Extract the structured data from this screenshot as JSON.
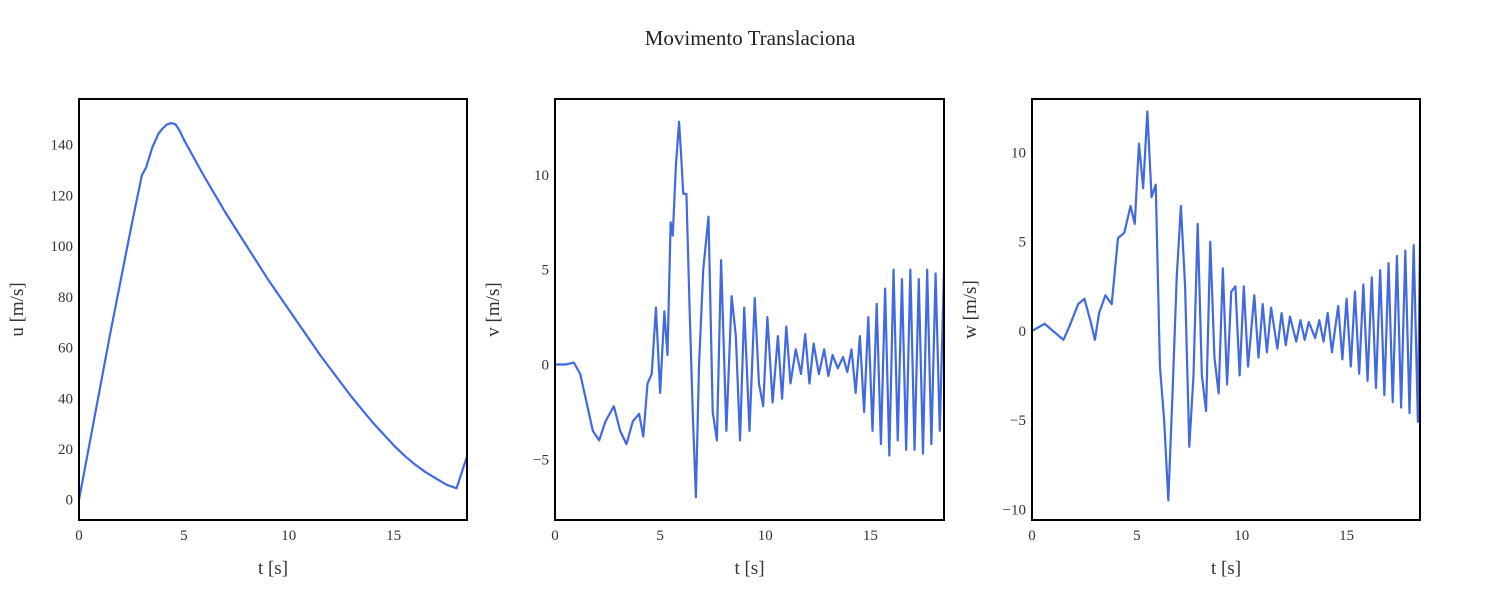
{
  "chart_data": {
    "title": "Movimento Translaciona",
    "line_color": "#4169e1",
    "subplots": [
      {
        "id": "u",
        "type": "line",
        "xlabel": "t [s]",
        "ylabel": "u [m/s]",
        "xlim": [
          0,
          18.5
        ],
        "ylim": [
          -8,
          158
        ],
        "xticks": [
          0,
          5,
          10,
          15
        ],
        "xtick_labels": [
          "0",
          "5",
          "10",
          "15"
        ],
        "yticks": [
          0,
          20,
          40,
          60,
          80,
          100,
          120,
          140
        ],
        "ytick_labels": [
          "0",
          "20",
          "40",
          "60",
          "80",
          "100",
          "120",
          "140"
        ],
        "x": [
          0,
          0.5,
          1,
          1.5,
          2,
          2.5,
          3,
          3.2,
          3.5,
          3.8,
          4.0,
          4.2,
          4.4,
          4.6,
          4.8,
          5,
          5.5,
          6,
          6.5,
          7,
          7.5,
          8,
          8.5,
          9,
          9.5,
          10,
          10.5,
          11,
          11.5,
          12,
          12.5,
          13,
          13.5,
          14,
          14.5,
          15,
          15.5,
          16,
          16.5,
          17,
          17.5,
          18,
          18.5
        ],
        "y": [
          0,
          22,
          44,
          66,
          87,
          108,
          128,
          131,
          139,
          144.5,
          146.5,
          148,
          148.5,
          148,
          145.5,
          142,
          134.5,
          127,
          120,
          113,
          106.5,
          100,
          93.5,
          87,
          81,
          75,
          69,
          63,
          57,
          51.5,
          46,
          40.5,
          35.5,
          30.5,
          26,
          21.5,
          17.5,
          14,
          11,
          8.5,
          6,
          4.5,
          17
        ]
      },
      {
        "id": "v",
        "type": "line",
        "xlabel": "t [s]",
        "ylabel": "v [m/s]",
        "xlim": [
          0,
          18.5
        ],
        "ylim": [
          -8.2,
          14
        ],
        "xticks": [
          0,
          5,
          10,
          15
        ],
        "xtick_labels": [
          "0",
          "5",
          "10",
          "15"
        ],
        "yticks": [
          -5,
          0,
          5,
          10
        ],
        "ytick_labels": [
          "−5",
          "0",
          "5",
          "10"
        ],
        "x": [
          0,
          0.5,
          0.9,
          1.2,
          1.5,
          1.8,
          2.1,
          2.4,
          2.8,
          3.1,
          3.4,
          3.7,
          4.0,
          4.2,
          4.4,
          4.6,
          4.8,
          5.0,
          5.2,
          5.35,
          5.5,
          5.6,
          5.75,
          5.9,
          6.0,
          6.1,
          6.25,
          6.4,
          6.55,
          6.7,
          6.85,
          7.05,
          7.3,
          7.5,
          7.7,
          7.9,
          8.15,
          8.4,
          8.6,
          8.8,
          9.0,
          9.25,
          9.5,
          9.7,
          9.9,
          10.1,
          10.35,
          10.6,
          10.8,
          11.0,
          11.2,
          11.45,
          11.7,
          11.9,
          12.1,
          12.3,
          12.55,
          12.8,
          13.0,
          13.2,
          13.45,
          13.7,
          13.9,
          14.1,
          14.3,
          14.5,
          14.7,
          14.9,
          15.1,
          15.3,
          15.5,
          15.7,
          15.9,
          16.1,
          16.3,
          16.5,
          16.7,
          16.9,
          17.1,
          17.3,
          17.5,
          17.7,
          17.9,
          18.1,
          18.3,
          18.5
        ],
        "y": [
          0,
          0,
          0.1,
          -0.5,
          -2,
          -3.5,
          -4,
          -3,
          -2.2,
          -3.5,
          -4.2,
          -3,
          -2.6,
          -3.8,
          -1,
          -0.5,
          3,
          -1.5,
          2.8,
          0.5,
          7.5,
          6.8,
          10.5,
          12.8,
          11,
          9,
          9,
          3,
          -2.5,
          -7,
          0,
          5,
          7.8,
          -2.5,
          -4,
          5.5,
          -3.5,
          3.6,
          1.5,
          -4,
          3.0,
          -3.5,
          3.5,
          -1,
          -2.2,
          2.5,
          -2,
          1.5,
          -1.8,
          2.0,
          -1,
          0.8,
          -0.5,
          1.6,
          -1,
          1.1,
          -0.5,
          0.8,
          -0.6,
          0.5,
          -0.2,
          0.4,
          -0.4,
          0.8,
          -1.5,
          1.5,
          -2.5,
          2.5,
          -3.5,
          3.2,
          -4.2,
          4.0,
          -4.8,
          5.0,
          -4.0,
          4.5,
          -4.5,
          5.0,
          -4.5,
          4.5,
          -4.7,
          5.0,
          -4.2,
          4.8,
          -3.5,
          5
        ]
      },
      {
        "id": "w",
        "type": "line",
        "xlabel": "t [s]",
        "ylabel": "w [m/s]",
        "xlim": [
          0,
          18.5
        ],
        "ylim": [
          -10.6,
          13.0
        ],
        "xticks": [
          0,
          5,
          10,
          15
        ],
        "xtick_labels": [
          "0",
          "5",
          "10",
          "15"
        ],
        "yticks": [
          -10,
          -5,
          0,
          5,
          10
        ],
        "ytick_labels": [
          "−10",
          "−5",
          "0",
          "5",
          "10"
        ],
        "x": [
          0,
          0.6,
          1.0,
          1.5,
          1.8,
          2.2,
          2.5,
          2.8,
          3.0,
          3.2,
          3.5,
          3.8,
          4.1,
          4.4,
          4.7,
          4.9,
          5.1,
          5.3,
          5.5,
          5.7,
          5.9,
          6.1,
          6.3,
          6.5,
          6.7,
          6.9,
          7.1,
          7.3,
          7.5,
          7.7,
          7.9,
          8.1,
          8.3,
          8.5,
          8.7,
          8.9,
          9.1,
          9.3,
          9.5,
          9.7,
          9.9,
          10.1,
          10.3,
          10.6,
          10.8,
          11.0,
          11.2,
          11.4,
          11.7,
          11.9,
          12.1,
          12.3,
          12.6,
          12.8,
          13.0,
          13.2,
          13.5,
          13.7,
          13.9,
          14.1,
          14.3,
          14.6,
          14.8,
          15.0,
          15.2,
          15.4,
          15.6,
          15.8,
          16.0,
          16.2,
          16.4,
          16.6,
          16.8,
          17.0,
          17.2,
          17.4,
          17.6,
          17.8,
          18.0,
          18.2,
          18.4,
          18.5
        ],
        "y": [
          0,
          0.4,
          0,
          -0.5,
          0.3,
          1.5,
          1.8,
          0.5,
          -0.5,
          1.0,
          2.0,
          1.5,
          5.2,
          5.5,
          7.0,
          6.0,
          10.5,
          8.0,
          12.3,
          7.5,
          8.2,
          -2.0,
          -5.0,
          -9.5,
          -3.5,
          3.0,
          7.0,
          2.5,
          -6.5,
          -2.5,
          6.0,
          -2.5,
          -4.5,
          5.0,
          -1.5,
          -3.5,
          3.5,
          -3.0,
          2.2,
          2.5,
          -2.5,
          2.5,
          -2.0,
          2.0,
          -1.5,
          1.5,
          -1.2,
          1.3,
          -1.0,
          1.0,
          -0.8,
          0.8,
          -0.6,
          0.6,
          -0.5,
          0.5,
          -0.4,
          0.6,
          -0.6,
          1.0,
          -1.2,
          1.4,
          -1.6,
          1.8,
          -2.0,
          2.2,
          -2.4,
          2.6,
          -2.8,
          3.0,
          -3.2,
          3.4,
          -3.6,
          3.8,
          -4.0,
          4.2,
          -4.3,
          4.5,
          -4.6,
          4.8,
          -5.1,
          5
        ]
      }
    ]
  }
}
